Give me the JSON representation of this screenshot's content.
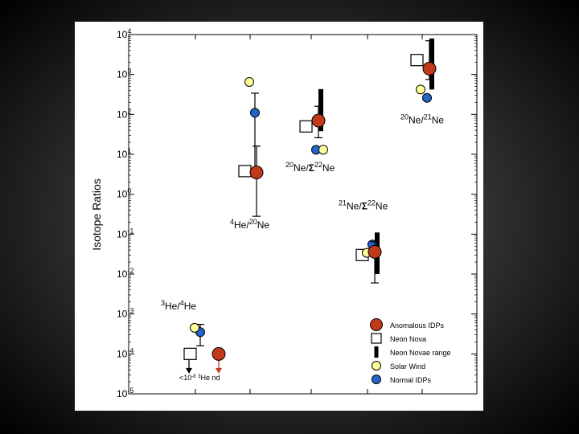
{
  "chart_data": {
    "type": "scatter",
    "ylabel": "Isotope Ratios",
    "y_scale": "log",
    "ylim": [
      1e-05,
      10000.0
    ],
    "y_ticks": [
      {
        "value": 10000,
        "base": "10",
        "exp": "4"
      },
      {
        "value": 1000,
        "base": "10",
        "exp": "3"
      },
      {
        "value": 100,
        "base": "10",
        "exp": "2"
      },
      {
        "value": 10,
        "base": "10",
        "exp": "1"
      },
      {
        "value": 1,
        "base": "10",
        "exp": "0"
      },
      {
        "value": 0.1,
        "base": "10",
        "exp": "-1"
      },
      {
        "value": 0.01,
        "base": "10",
        "exp": "-2"
      },
      {
        "value": 0.001,
        "base": "10",
        "exp": "-3"
      },
      {
        "value": 0.0001,
        "base": "10",
        "exp": "-4"
      },
      {
        "value": 1e-05,
        "base": "10",
        "exp": "-5"
      }
    ],
    "groups": [
      {
        "label_parts": [
          {
            "t": "3",
            "sup": true
          },
          {
            "t": "He/"
          },
          {
            "t": "4",
            "sup": true
          },
          {
            "t": "He"
          }
        ],
        "label_value": 0.0013,
        "anomalous_idps": {
          "value": 0.0001,
          "arrow_to": 3.2e-05
        },
        "neon_nova": {
          "value": 0.0001,
          "arrow_to": 3.2e-05
        },
        "solar_wind": {
          "value": 0.00045
        },
        "normal_idps": {
          "value": 0.00035,
          "err_low": 0.00016,
          "err_high": 0.00055
        },
        "note_parts": [
          {
            "t": "<10"
          },
          {
            "t": "-8",
            "sup": true
          },
          {
            "t": "  "
          },
          {
            "t": "3",
            "sup": true
          },
          {
            "t": "He nd"
          }
        ],
        "note_value": 2.2e-05
      },
      {
        "label_parts": [
          {
            "t": "4",
            "sup": true
          },
          {
            "t": "He/"
          },
          {
            "t": "20",
            "sup": true
          },
          {
            "t": "Ne"
          }
        ],
        "label_value": 0.14,
        "anomalous_idps": {
          "value": 3.5,
          "err_low": 0.28,
          "err_high": 16
        },
        "neon_nova": {
          "value": 3.8
        },
        "solar_wind": {
          "value": 650
        },
        "normal_idps": {
          "value": 110,
          "err_low": 3.5,
          "err_high": 340
        }
      },
      {
        "label_parts": [
          {
            "t": "20",
            "sup": true
          },
          {
            "t": "Ne/"
          },
          {
            "t": "Σ",
            "sym": true
          },
          {
            "t": "22",
            "sup": true
          },
          {
            "t": "Ne"
          }
        ],
        "label_value": 3.8,
        "anomalous_idps": {
          "value": 70,
          "err_low": 26,
          "err_high": 160
        },
        "neon_nova": {
          "value": 50
        },
        "neon_novae_range": [
          38,
          430
        ],
        "solar_wind": {
          "value": 13
        },
        "normal_idps": {
          "value": 13
        }
      },
      {
        "label_parts": [
          {
            "t": "21",
            "sup": true
          },
          {
            "t": "Ne/"
          },
          {
            "t": "Σ",
            "sym": true
          },
          {
            "t": "22",
            "sup": true
          },
          {
            "t": "Ne"
          }
        ],
        "label_value": 0.42,
        "anomalous_idps": {
          "value": 0.036,
          "err_low": 0.006,
          "err_high": 0.065
        },
        "neon_nova": {
          "value": 0.03
        },
        "neon_novae_range": [
          0.01,
          0.11
        ],
        "solar_wind": {
          "value": 0.034
        },
        "normal_idps": {
          "value": 0.055
        }
      },
      {
        "label_parts": [
          {
            "t": "20",
            "sup": true
          },
          {
            "t": "Ne/"
          },
          {
            "t": "21",
            "sup": true
          },
          {
            "t": "Ne"
          }
        ],
        "label_value": 60,
        "anomalous_idps": {
          "value": 1400,
          "err_low": 750,
          "err_high": 7000
        },
        "neon_nova": {
          "value": 2300
        },
        "neon_novae_range": [
          420,
          8000
        ],
        "solar_wind": {
          "value": 420
        },
        "normal_idps": {
          "value": 260
        }
      }
    ],
    "legend": {
      "position": "bottom-right",
      "entries": [
        {
          "key": "anomalous_idps",
          "label": "Anomalous IDPs"
        },
        {
          "key": "neon_nova",
          "label": "Neon Nova"
        },
        {
          "key": "neon_novae_range",
          "label": "Neon Novae range"
        },
        {
          "key": "solar_wind",
          "label": "Solar Wind"
        },
        {
          "key": "normal_idps",
          "label": "Normal IDPs"
        }
      ]
    },
    "colors": {
      "anomalous_idps": "#c0391b",
      "neon_nova": "#ffffff",
      "neon_novae_range": "#000000",
      "solar_wind": "#ffff99",
      "normal_idps": "#2464c8"
    }
  }
}
